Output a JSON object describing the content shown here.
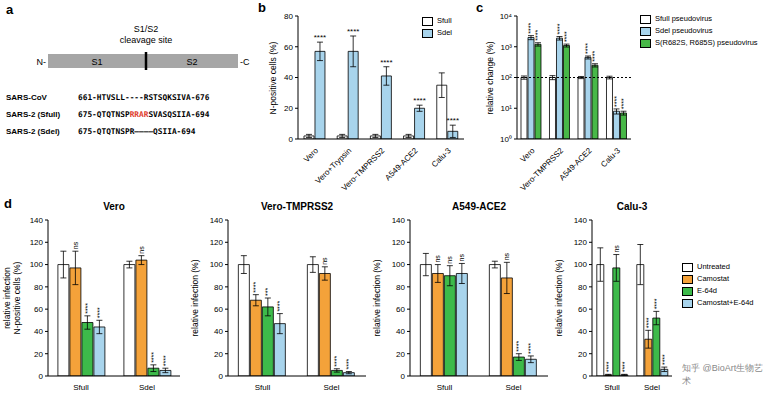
{
  "watermark": "知乎 @BioArt生物艺术",
  "diagram": {
    "panel": "a",
    "site_label": [
      "S1/S2",
      "cleavage site"
    ],
    "n_term": "N-",
    "c_term": "-C",
    "domains": [
      "S1",
      "S2"
    ],
    "sequences": [
      {
        "name": "SARS-CoV",
        "segments": [
          {
            "text": "661-HTVSLL----RSTSQKSIVA-676"
          }
        ]
      },
      {
        "name": "SARS-2 (Sfull)",
        "segments": [
          {
            "text": "675-QTQTNSP"
          },
          {
            "text": "RRAR",
            "color": "#e0402f"
          },
          {
            "text": "SVASQSIIA-694"
          }
        ]
      },
      {
        "name": "SARS-2 (Sdel)",
        "segments": [
          {
            "text": "675-QTQTNSPR————QSIIA-694"
          }
        ]
      }
    ]
  },
  "chart_data": [
    {
      "panel": "b",
      "type": "bar",
      "y_label": "N-positive cells (%)",
      "categories": [
        "Vero",
        "Vero+Trypsin",
        "Vero-TMPRSS2",
        "A549-ACE2",
        "Calu-3"
      ],
      "ylim": [
        0,
        80
      ],
      "yticks": [
        0,
        20,
        40,
        60,
        80
      ],
      "legend": "top right",
      "series": [
        {
          "name": "Sfull",
          "color": "#ffffff",
          "values": [
            2,
            2,
            2,
            2,
            35
          ],
          "errors": [
            1,
            1,
            1,
            1,
            8
          ]
        },
        {
          "name": "Sdel",
          "color": "#a8d4ec",
          "values": [
            57,
            57,
            41,
            20,
            5
          ],
          "errors": [
            6,
            10,
            6,
            2,
            4
          ],
          "significance": [
            "****",
            "****",
            "****",
            "****",
            "****"
          ]
        }
      ]
    },
    {
      "panel": "c",
      "type": "bar",
      "y_label": "relative change (%)",
      "log": "y",
      "categories": [
        "Vero",
        "Vero-TMPRSS2",
        "A549-ACE2",
        "Calu-3"
      ],
      "ylim": [
        1,
        10000
      ],
      "yticks": [
        {
          "value": 1,
          "label": "10⁰"
        },
        {
          "value": 10,
          "label": "10¹"
        },
        {
          "value": 100,
          "label": "10²"
        },
        {
          "value": 1000,
          "label": "10³"
        },
        {
          "value": 10000,
          "label": "10⁴"
        }
      ],
      "reference_line": 100,
      "legend": "right",
      "series": [
        {
          "name": "Sfull pseudovirus",
          "color": "#ffffff",
          "values": [
            100,
            100,
            100,
            100
          ],
          "errors": [
            12,
            15,
            8,
            10
          ]
        },
        {
          "name": "Sdel pseudovirus",
          "color": "#a8d4ec",
          "values": [
            2000,
            1900,
            450,
            8
          ],
          "errors": [
            300,
            250,
            50,
            1.5
          ],
          "significance": [
            "****",
            "****",
            "****",
            "****"
          ]
        },
        {
          "name": "S(R682S, R685S) pseudovirus",
          "color": "#48b848",
          "values": [
            1200,
            1100,
            250,
            7
          ],
          "errors": [
            150,
            120,
            30,
            1
          ],
          "significance": [
            "****",
            "****",
            "****",
            "****"
          ]
        }
      ]
    },
    {
      "panel": "d",
      "type": "bar",
      "title": "Vero",
      "y_label": [
        "relative infection",
        "N-positive cells (%)"
      ],
      "categories": [
        "Sfull",
        "Sdel"
      ],
      "ylim": [
        0,
        140
      ],
      "yticks": [
        0,
        20,
        40,
        60,
        80,
        100,
        120,
        140
      ],
      "series": [
        {
          "name": "Untreated",
          "color": "#ffffff",
          "values": [
            100,
            100
          ],
          "errors": [
            12,
            3
          ]
        },
        {
          "name": "Camostat",
          "color": "#f4a23a",
          "values": [
            97,
            104
          ],
          "errors": [
            15,
            4
          ],
          "significance": [
            "ns",
            "ns"
          ]
        },
        {
          "name": "E-64d",
          "color": "#3dba4a",
          "values": [
            48,
            7
          ],
          "errors": [
            6,
            3
          ],
          "significance": [
            "****",
            "****"
          ]
        },
        {
          "name": "Camostat+E-64d",
          "color": "#a8d4ec",
          "values": [
            44,
            5
          ],
          "errors": [
            6,
            2
          ],
          "significance": [
            "****",
            "****"
          ]
        }
      ]
    },
    {
      "type": "bar",
      "title": "Vero-TMPRSS2",
      "y_label": "relative infection (%)",
      "categories": [
        "Sfull",
        "Sdel"
      ],
      "ylim": [
        0,
        140
      ],
      "yticks": [
        0,
        20,
        40,
        60,
        80,
        100,
        120,
        140
      ],
      "series": [
        {
          "name": "Untreated",
          "color": "#ffffff",
          "values": [
            100,
            100
          ],
          "errors": [
            8,
            7
          ]
        },
        {
          "name": "Camostat",
          "color": "#f4a23a",
          "values": [
            68,
            92
          ],
          "errors": [
            5,
            6
          ],
          "significance": [
            "****",
            "ns"
          ]
        },
        {
          "name": "E-64d",
          "color": "#3dba4a",
          "values": [
            62,
            5
          ],
          "errors": [
            8,
            1.5
          ],
          "significance": [
            "***",
            "****"
          ]
        },
        {
          "name": "Camostat+E-64d",
          "color": "#a8d4ec",
          "values": [
            47,
            3
          ],
          "errors": [
            9,
            1
          ],
          "significance": [
            "****",
            "****"
          ]
        }
      ]
    },
    {
      "type": "bar",
      "title": "A549-ACE2",
      "y_label": "relative infection (%)",
      "categories": [
        "Sfull",
        "Sdel"
      ],
      "ylim": [
        0,
        140
      ],
      "yticks": [
        0,
        20,
        40,
        60,
        80,
        100,
        120,
        140
      ],
      "series": [
        {
          "name": "Untreated",
          "color": "#ffffff",
          "values": [
            100,
            100
          ],
          "errors": [
            10,
            3
          ]
        },
        {
          "name": "Camostat",
          "color": "#f4a23a",
          "values": [
            92,
            88
          ],
          "errors": [
            8,
            14
          ],
          "significance": [
            "ns",
            "ns"
          ]
        },
        {
          "name": "E-64d",
          "color": "#3dba4a",
          "values": [
            90,
            17
          ],
          "errors": [
            9,
            3
          ],
          "significance": [
            "ns",
            "****"
          ]
        },
        {
          "name": "Camostat+E-64d",
          "color": "#a8d4ec",
          "values": [
            92,
            15
          ],
          "errors": [
            9,
            3
          ],
          "significance": [
            "ns",
            "****"
          ]
        }
      ]
    },
    {
      "type": "bar",
      "title": "Calu-3",
      "y_label": "relative infection (%)",
      "categories": [
        "Sfull",
        "Sdel"
      ],
      "ylim": [
        0,
        140
      ],
      "yticks": [
        0,
        20,
        40,
        60,
        80,
        100,
        120,
        140
      ],
      "legend": "right",
      "series": [
        {
          "name": "Untreated",
          "color": "#ffffff",
          "values": [
            100,
            100
          ],
          "errors": [
            15,
            18
          ]
        },
        {
          "name": "Camostat",
          "color": "#f4a23a",
          "values": [
            1,
            33
          ],
          "errors": [
            0.5,
            8
          ],
          "significance": [
            "****",
            "****"
          ]
        },
        {
          "name": "E-64d",
          "color": "#3dba4a",
          "values": [
            97,
            52
          ],
          "errors": [
            12,
            6
          ],
          "significance": [
            "ns",
            "****"
          ]
        },
        {
          "name": "Camostat+E-64d",
          "color": "#a8d4ec",
          "values": [
            1,
            6
          ],
          "errors": [
            0.5,
            2
          ],
          "significance": [
            "****",
            "****"
          ]
        }
      ]
    }
  ]
}
